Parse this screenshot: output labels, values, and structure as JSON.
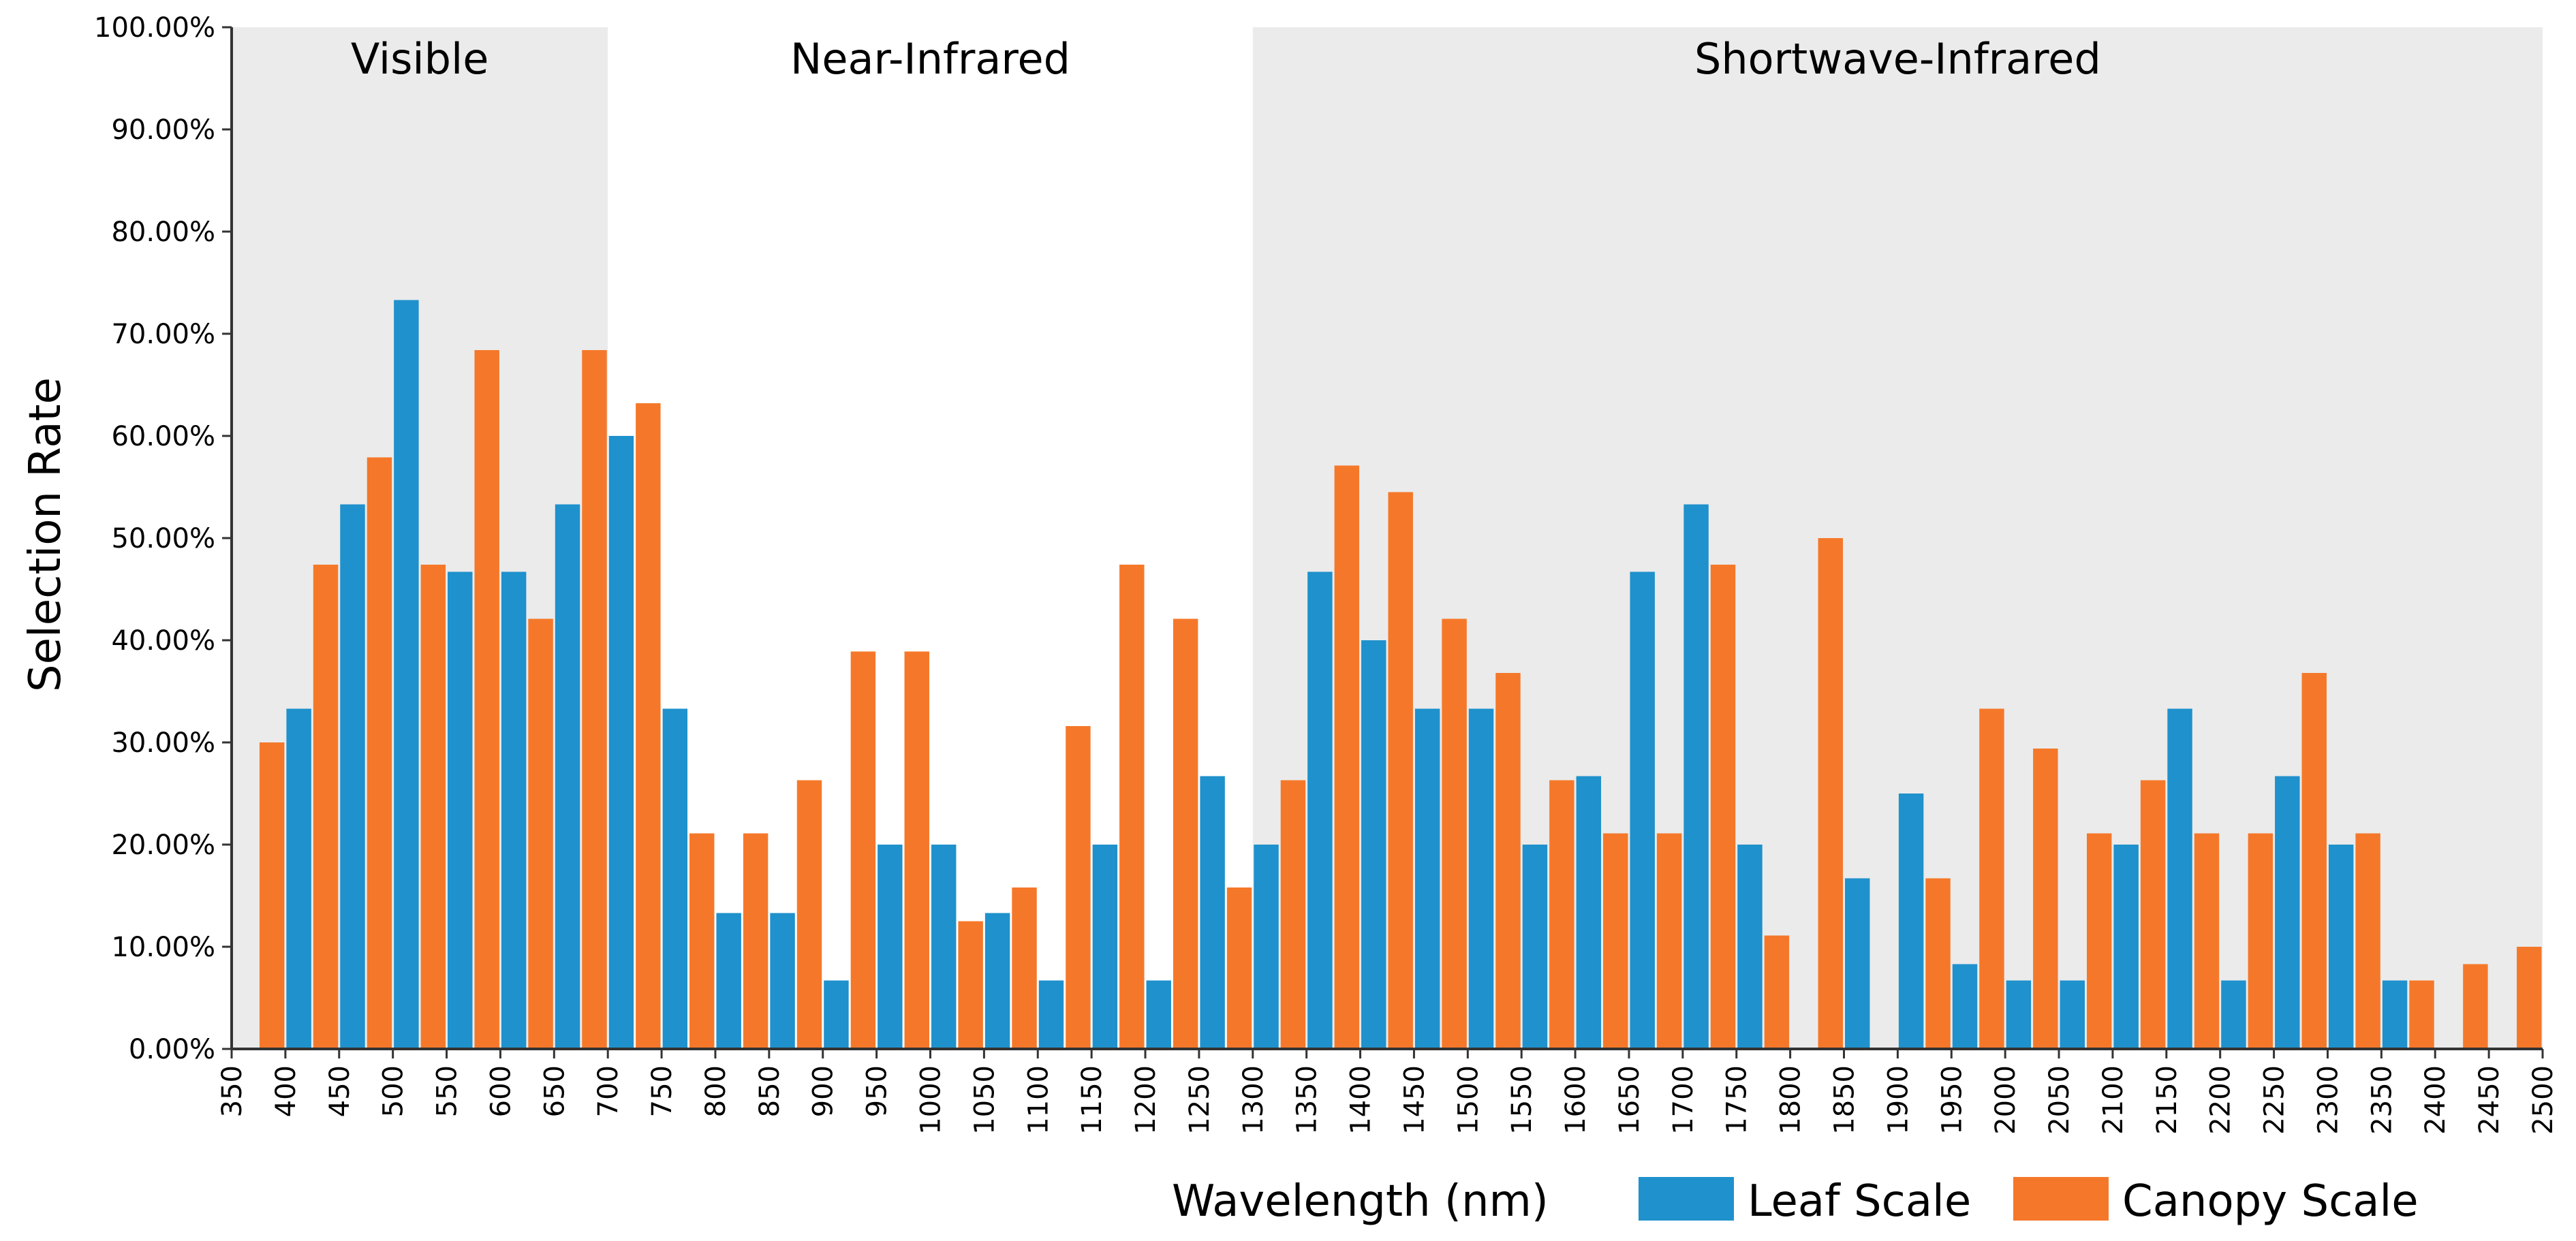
{
  "chart_data": {
    "type": "bar",
    "title": "",
    "xlabel": "Wavelength (nm)",
    "ylabel": "Selection Rate",
    "ylim": [
      0,
      100
    ],
    "y_ticks": [
      "0.00%",
      "10.00%",
      "20.00%",
      "30.00%",
      "40.00%",
      "50.00%",
      "60.00%",
      "70.00%",
      "80.00%",
      "90.00%",
      "100.00%"
    ],
    "x_ticks": [
      "350",
      "400",
      "450",
      "500",
      "550",
      "600",
      "650",
      "700",
      "750",
      "800",
      "850",
      "900",
      "950",
      "1000",
      "1050",
      "1100",
      "1150",
      "1200",
      "1250",
      "1300",
      "1350",
      "1400",
      "1450",
      "1500",
      "1550",
      "1600",
      "1650",
      "1700",
      "1750",
      "1800",
      "1850",
      "1900",
      "1950",
      "2000",
      "2050",
      "2100",
      "2150",
      "2200",
      "2250",
      "2300",
      "2350",
      "2400",
      "2450",
      "2500"
    ],
    "x_range": [
      350,
      2500
    ],
    "grid": false,
    "legend_position": "bottom-right",
    "regions": [
      {
        "label": "Visible",
        "start": 350,
        "end": 700,
        "shaded": true
      },
      {
        "label": "Near-Infrared",
        "start": 700,
        "end": 1300,
        "shaded": false
      },
      {
        "label": "Shortwave-Infrared",
        "start": 1300,
        "end": 2500,
        "shaded": true
      }
    ],
    "series": [
      {
        "name": "Leaf Scale",
        "color": "#1f91cc",
        "points": [
          [
            375,
            0
          ],
          [
            425,
            33.3
          ],
          [
            475,
            53.3
          ],
          [
            525,
            73.3
          ],
          [
            575,
            46.7
          ],
          [
            625,
            46.7
          ],
          [
            675,
            53.3
          ],
          [
            725,
            60.0
          ],
          [
            775,
            33.3
          ],
          [
            825,
            13.3
          ],
          [
            875,
            13.3
          ],
          [
            925,
            6.7
          ],
          [
            975,
            20.0
          ],
          [
            1025,
            20.0
          ],
          [
            1075,
            13.3
          ],
          [
            1125,
            6.7
          ],
          [
            1175,
            20.0
          ],
          [
            1225,
            6.7
          ],
          [
            1275,
            26.7
          ],
          [
            1325,
            20.0
          ],
          [
            1375,
            46.7
          ],
          [
            1425,
            40.0
          ],
          [
            1475,
            33.3
          ],
          [
            1525,
            33.3
          ],
          [
            1575,
            20.0
          ],
          [
            1625,
            26.7
          ],
          [
            1675,
            46.7
          ],
          [
            1725,
            53.3
          ],
          [
            1775,
            20.0
          ],
          [
            1825,
            0
          ],
          [
            1875,
            16.7
          ],
          [
            1925,
            25.0
          ],
          [
            1975,
            8.3
          ],
          [
            2025,
            6.7
          ],
          [
            2075,
            6.7
          ],
          [
            2125,
            20.0
          ],
          [
            2175,
            33.3
          ],
          [
            2225,
            6.7
          ],
          [
            2275,
            26.7
          ],
          [
            2325,
            20.0
          ],
          [
            2375,
            6.7
          ],
          [
            2425,
            0
          ],
          [
            2475,
            0
          ]
        ]
      },
      {
        "name": "Canopy Scale",
        "color": "#f5782a",
        "points": [
          [
            375,
            30.0
          ],
          [
            425,
            47.4
          ],
          [
            475,
            57.9
          ],
          [
            525,
            47.4
          ],
          [
            575,
            68.4
          ],
          [
            625,
            42.1
          ],
          [
            675,
            68.4
          ],
          [
            725,
            63.2
          ],
          [
            775,
            21.1
          ],
          [
            825,
            21.1
          ],
          [
            875,
            26.3
          ],
          [
            925,
            38.9
          ],
          [
            975,
            38.9
          ],
          [
            1025,
            12.5
          ],
          [
            1075,
            15.8
          ],
          [
            1125,
            31.6
          ],
          [
            1175,
            47.4
          ],
          [
            1225,
            42.1
          ],
          [
            1275,
            15.8
          ],
          [
            1325,
            26.3
          ],
          [
            1375,
            57.1
          ],
          [
            1425,
            54.5
          ],
          [
            1475,
            42.1
          ],
          [
            1525,
            36.8
          ],
          [
            1575,
            26.3
          ],
          [
            1625,
            21.1
          ],
          [
            1675,
            21.1
          ],
          [
            1725,
            47.4
          ],
          [
            1775,
            11.1
          ],
          [
            1825,
            50.0
          ],
          [
            1875,
            0
          ],
          [
            1925,
            16.7
          ],
          [
            1975,
            33.3
          ],
          [
            2025,
            29.4
          ],
          [
            2075,
            21.1
          ],
          [
            2125,
            26.3
          ],
          [
            2175,
            21.1
          ],
          [
            2225,
            21.1
          ],
          [
            2275,
            36.8
          ],
          [
            2325,
            21.1
          ],
          [
            2375,
            6.7
          ],
          [
            2425,
            8.3
          ],
          [
            2475,
            10.0
          ]
        ]
      }
    ]
  }
}
